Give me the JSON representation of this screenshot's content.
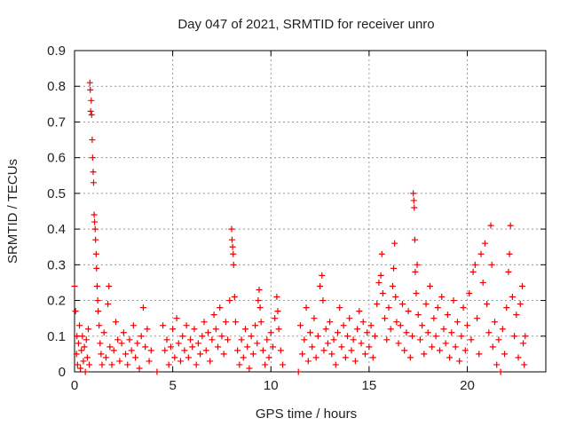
{
  "chart_data": {
    "type": "scatter",
    "title": "Day 047 of 2021, SRMTID for receiver unro",
    "xlabel": "GPS time / hours",
    "ylabel": "SRMTID / TECUs",
    "xlim": [
      0,
      24
    ],
    "ylim": [
      0,
      0.9
    ],
    "x_ticks": [
      0,
      5,
      10,
      15,
      20
    ],
    "y_ticks": [
      0,
      0.1,
      0.2,
      0.3,
      0.4,
      0.5,
      0.6,
      0.7,
      0.8,
      0.9
    ],
    "x_tick_labels": [
      "0",
      "5",
      "10",
      "15",
      "20"
    ],
    "y_tick_labels": [
      "0",
      "0.1",
      "0.2",
      "0.3",
      "0.4",
      "0.5",
      "0.6",
      "0.7",
      "0.8",
      "0.9"
    ],
    "grid": true,
    "marker": "+",
    "color": "#ee0000",
    "series": [
      {
        "name": "SRMTID",
        "points": [
          [
            0.0,
            0.24
          ],
          [
            0.05,
            0.17
          ],
          [
            0.1,
            0.05
          ],
          [
            0.12,
            0.1
          ],
          [
            0.15,
            0.02
          ],
          [
            0.2,
            0.08
          ],
          [
            0.25,
            0.13
          ],
          [
            0.3,
            0.01
          ],
          [
            0.35,
            0.06
          ],
          [
            0.4,
            0.1
          ],
          [
            0.45,
            0.03
          ],
          [
            0.5,
            0.07
          ],
          [
            0.55,
            0.0
          ],
          [
            0.6,
            0.09
          ],
          [
            0.65,
            0.04
          ],
          [
            0.7,
            0.12
          ],
          [
            0.75,
            0.02
          ],
          [
            0.78,
            0.81
          ],
          [
            0.8,
            0.79
          ],
          [
            0.82,
            0.73
          ],
          [
            0.85,
            0.76
          ],
          [
            0.87,
            0.72
          ],
          [
            0.9,
            0.65
          ],
          [
            0.92,
            0.6
          ],
          [
            0.95,
            0.56
          ],
          [
            0.97,
            0.53
          ],
          [
            1.0,
            0.44
          ],
          [
            1.02,
            0.42
          ],
          [
            1.05,
            0.4
          ],
          [
            1.07,
            0.37
          ],
          [
            1.1,
            0.33
          ],
          [
            1.12,
            0.29
          ],
          [
            1.15,
            0.24
          ],
          [
            1.18,
            0.2
          ],
          [
            1.2,
            0.17
          ],
          [
            1.25,
            0.13
          ],
          [
            1.3,
            0.08
          ],
          [
            1.35,
            0.05
          ],
          [
            1.4,
            0.02
          ],
          [
            1.5,
            0.11
          ],
          [
            1.6,
            0.04
          ],
          [
            1.7,
            0.19
          ],
          [
            1.75,
            0.24
          ],
          [
            1.8,
            0.07
          ],
          [
            1.9,
            0.02
          ],
          [
            2.0,
            0.06
          ],
          [
            2.1,
            0.14
          ],
          [
            2.2,
            0.09
          ],
          [
            2.3,
            0.03
          ],
          [
            2.4,
            0.08
          ],
          [
            2.5,
            0.11
          ],
          [
            2.6,
            0.05
          ],
          [
            2.7,
            0.02
          ],
          [
            2.8,
            0.09
          ],
          [
            2.9,
            0.06
          ],
          [
            3.0,
            0.13
          ],
          [
            3.1,
            0.04
          ],
          [
            3.2,
            0.08
          ],
          [
            3.3,
            0.01
          ],
          [
            3.4,
            0.1
          ],
          [
            3.5,
            0.18
          ],
          [
            3.6,
            0.07
          ],
          [
            3.7,
            0.12
          ],
          [
            3.8,
            0.03
          ],
          [
            3.9,
            0.06
          ],
          [
            4.2,
            0.0
          ],
          [
            4.5,
            0.13
          ],
          [
            4.6,
            0.06
          ],
          [
            4.7,
            0.09
          ],
          [
            4.8,
            0.02
          ],
          [
            4.9,
            0.07
          ],
          [
            5.0,
            0.12
          ],
          [
            5.1,
            0.04
          ],
          [
            5.2,
            0.15
          ],
          [
            5.3,
            0.08
          ],
          [
            5.4,
            0.03
          ],
          [
            5.5,
            0.1
          ],
          [
            5.6,
            0.06
          ],
          [
            5.7,
            0.13
          ],
          [
            5.8,
            0.04
          ],
          [
            5.9,
            0.09
          ],
          [
            6.0,
            0.07
          ],
          [
            6.1,
            0.12
          ],
          [
            6.2,
            0.02
          ],
          [
            6.3,
            0.08
          ],
          [
            6.4,
            0.05
          ],
          [
            6.5,
            0.1
          ],
          [
            6.6,
            0.14
          ],
          [
            6.7,
            0.06
          ],
          [
            6.8,
            0.11
          ],
          [
            6.9,
            0.03
          ],
          [
            7.0,
            0.09
          ],
          [
            7.1,
            0.16
          ],
          [
            7.2,
            0.12
          ],
          [
            7.3,
            0.07
          ],
          [
            7.4,
            0.18
          ],
          [
            7.5,
            0.1
          ],
          [
            7.6,
            0.05
          ],
          [
            7.7,
            0.14
          ],
          [
            7.8,
            0.09
          ],
          [
            7.9,
            0.2
          ],
          [
            8.0,
            0.4
          ],
          [
            8.02,
            0.37
          ],
          [
            8.05,
            0.35
          ],
          [
            8.08,
            0.33
          ],
          [
            8.1,
            0.3
          ],
          [
            8.15,
            0.21
          ],
          [
            8.2,
            0.14
          ],
          [
            8.3,
            0.06
          ],
          [
            8.4,
            0.02
          ],
          [
            8.5,
            0.09
          ],
          [
            8.6,
            0.04
          ],
          [
            8.7,
            0.12
          ],
          [
            8.8,
            0.07
          ],
          [
            8.9,
            0.01
          ],
          [
            9.0,
            0.1
          ],
          [
            9.1,
            0.05
          ],
          [
            9.2,
            0.13
          ],
          [
            9.3,
            0.08
          ],
          [
            9.35,
            0.2
          ],
          [
            9.4,
            0.23
          ],
          [
            9.45,
            0.18
          ],
          [
            9.5,
            0.14
          ],
          [
            9.6,
            0.06
          ],
          [
            9.7,
            0.02
          ],
          [
            9.8,
            0.09
          ],
          [
            9.9,
            0.04
          ],
          [
            10.0,
            0.11
          ],
          [
            10.1,
            0.07
          ],
          [
            10.2,
            0.15
          ],
          [
            10.3,
            0.21
          ],
          [
            10.35,
            0.17
          ],
          [
            10.4,
            0.12
          ],
          [
            10.5,
            0.06
          ],
          [
            10.6,
            0.02
          ],
          [
            11.4,
            0.0
          ],
          [
            11.5,
            0.13
          ],
          [
            11.6,
            0.05
          ],
          [
            11.7,
            0.09
          ],
          [
            11.8,
            0.18
          ],
          [
            11.9,
            0.03
          ],
          [
            12.0,
            0.11
          ],
          [
            12.1,
            0.07
          ],
          [
            12.2,
            0.15
          ],
          [
            12.3,
            0.04
          ],
          [
            12.4,
            0.1
          ],
          [
            12.5,
            0.24
          ],
          [
            12.6,
            0.27
          ],
          [
            12.65,
            0.2
          ],
          [
            12.7,
            0.06
          ],
          [
            12.8,
            0.12
          ],
          [
            12.9,
            0.08
          ],
          [
            13.0,
            0.14
          ],
          [
            13.1,
            0.05
          ],
          [
            13.2,
            0.09
          ],
          [
            13.3,
            0.02
          ],
          [
            13.4,
            0.11
          ],
          [
            13.5,
            0.18
          ],
          [
            13.6,
            0.07
          ],
          [
            13.7,
            0.13
          ],
          [
            13.8,
            0.04
          ],
          [
            13.9,
            0.1
          ],
          [
            14.0,
            0.15
          ],
          [
            14.1,
            0.06
          ],
          [
            14.2,
            0.09
          ],
          [
            14.3,
            0.03
          ],
          [
            14.4,
            0.12
          ],
          [
            14.5,
            0.17
          ],
          [
            14.6,
            0.08
          ],
          [
            14.7,
            0.14
          ],
          [
            14.8,
            0.05
          ],
          [
            14.9,
            0.11
          ],
          [
            15.0,
            0.07
          ],
          [
            15.1,
            0.13
          ],
          [
            15.2,
            0.04
          ],
          [
            15.3,
            0.1
          ],
          [
            15.4,
            0.19
          ],
          [
            15.5,
            0.25
          ],
          [
            15.6,
            0.27
          ],
          [
            15.65,
            0.33
          ],
          [
            15.7,
            0.22
          ],
          [
            15.8,
            0.15
          ],
          [
            15.9,
            0.09
          ],
          [
            16.0,
            0.18
          ],
          [
            16.1,
            0.12
          ],
          [
            16.2,
            0.24
          ],
          [
            16.25,
            0.29
          ],
          [
            16.3,
            0.36
          ],
          [
            16.35,
            0.21
          ],
          [
            16.4,
            0.14
          ],
          [
            16.5,
            0.08
          ],
          [
            16.6,
            0.13
          ],
          [
            16.7,
            0.19
          ],
          [
            16.8,
            0.06
          ],
          [
            16.9,
            0.11
          ],
          [
            17.0,
            0.17
          ],
          [
            17.1,
            0.04
          ],
          [
            17.2,
            0.1
          ],
          [
            17.25,
            0.5
          ],
          [
            17.28,
            0.48
          ],
          [
            17.3,
            0.46
          ],
          [
            17.33,
            0.37
          ],
          [
            17.35,
            0.28
          ],
          [
            17.4,
            0.22
          ],
          [
            17.45,
            0.3
          ],
          [
            17.5,
            0.16
          ],
          [
            17.6,
            0.09
          ],
          [
            17.7,
            0.13
          ],
          [
            17.8,
            0.05
          ],
          [
            17.9,
            0.19
          ],
          [
            18.0,
            0.11
          ],
          [
            18.1,
            0.24
          ],
          [
            18.2,
            0.07
          ],
          [
            18.3,
            0.15
          ],
          [
            18.4,
            0.1
          ],
          [
            18.5,
            0.18
          ],
          [
            18.6,
            0.06
          ],
          [
            18.7,
            0.21
          ],
          [
            18.8,
            0.12
          ],
          [
            18.9,
            0.08
          ],
          [
            19.0,
            0.16
          ],
          [
            19.1,
            0.04
          ],
          [
            19.2,
            0.11
          ],
          [
            19.3,
            0.2
          ],
          [
            19.4,
            0.07
          ],
          [
            19.5,
            0.14
          ],
          [
            19.6,
            0.03
          ],
          [
            19.7,
            0.1
          ],
          [
            19.8,
            0.18
          ],
          [
            19.9,
            0.06
          ],
          [
            20.0,
            0.13
          ],
          [
            20.1,
            0.22
          ],
          [
            20.2,
            0.09
          ],
          [
            20.3,
            0.28
          ],
          [
            20.4,
            0.3
          ],
          [
            20.5,
            0.15
          ],
          [
            20.6,
            0.05
          ],
          [
            20.7,
            0.33
          ],
          [
            20.8,
            0.25
          ],
          [
            20.9,
            0.36
          ],
          [
            21.0,
            0.19
          ],
          [
            21.1,
            0.11
          ],
          [
            21.2,
            0.41
          ],
          [
            21.25,
            0.3
          ],
          [
            21.3,
            0.07
          ],
          [
            21.4,
            0.14
          ],
          [
            21.5,
            0.02
          ],
          [
            21.6,
            0.09
          ],
          [
            21.7,
            0.0
          ],
          [
            21.8,
            0.12
          ],
          [
            21.9,
            0.05
          ],
          [
            22.0,
            0.18
          ],
          [
            22.1,
            0.28
          ],
          [
            22.15,
            0.33
          ],
          [
            22.2,
            0.41
          ],
          [
            22.3,
            0.21
          ],
          [
            22.4,
            0.1
          ],
          [
            22.5,
            0.16
          ],
          [
            22.6,
            0.04
          ],
          [
            22.7,
            0.19
          ],
          [
            22.8,
            0.24
          ],
          [
            22.85,
            0.08
          ],
          [
            22.9,
            0.02
          ],
          [
            22.95,
            0.1
          ]
        ]
      }
    ]
  }
}
